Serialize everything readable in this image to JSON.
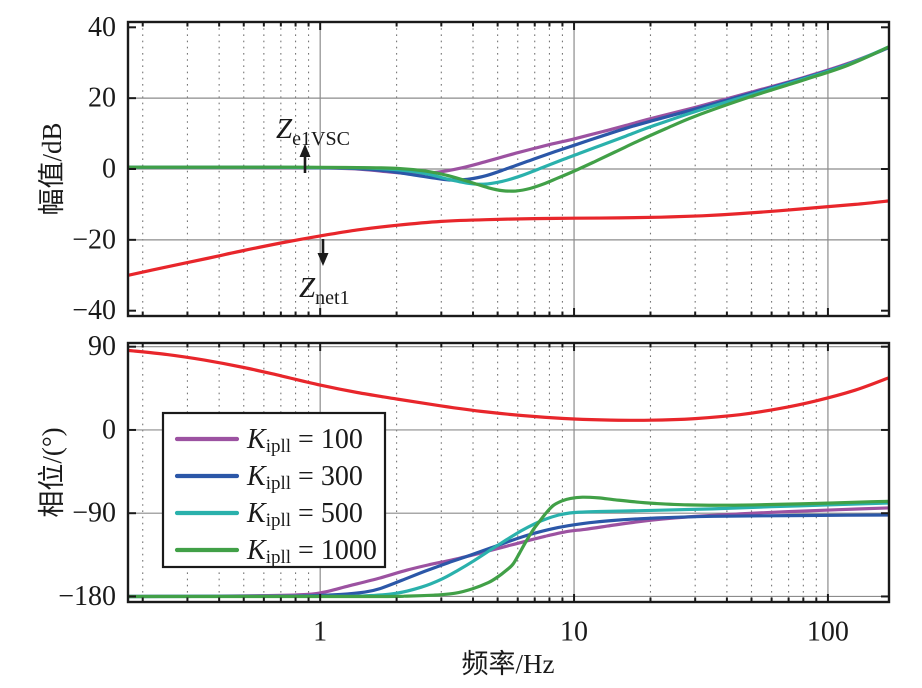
{
  "figure": {
    "xlabel": "频率/Hz",
    "x_tick_labels": [
      "1",
      "10",
      "100"
    ],
    "background": "#ffffff"
  },
  "colors": {
    "axis": "#1a1a1a",
    "grid_major": "#8c8c8c",
    "grid_minor": "#757575",
    "text": "#1a1a1a",
    "legend_bg": "#ffffff"
  },
  "legend": {
    "items": [
      {
        "k": "K",
        "sub": "ipll",
        "eq": " = 100",
        "color": "#9C52A1"
      },
      {
        "k": "K",
        "sub": "ipll",
        "eq": " = 300",
        "color": "#2B57A8"
      },
      {
        "k": "K",
        "sub": "ipll",
        "eq": " = 500",
        "color": "#2AB1AC"
      },
      {
        "k": "K",
        "sub": "ipll",
        "eq": " = 1000",
        "color": "#41A047"
      }
    ]
  },
  "annotations": [
    {
      "main": "Z",
      "sub": "e1VSC"
    },
    {
      "main": "Z",
      "sub": "net1"
    }
  ],
  "chart_data": [
    {
      "type": "line",
      "name": "magnitude",
      "ylabel": "幅值/dB",
      "xscale": "log",
      "xlim": [
        0.175,
        174
      ],
      "ylim": [
        -41.5,
        41.5
      ],
      "xticks": [
        1,
        10,
        100
      ],
      "yticks": [
        40,
        20,
        0,
        -20,
        -40
      ],
      "ytick_labels": [
        "40",
        "20",
        "0",
        "−20",
        "−40"
      ],
      "grid_y": [
        20,
        0,
        -20
      ],
      "grid": "on",
      "series": [
        {
          "name": "Kipll=100",
          "color": "#9C52A1",
          "x": [
            0.175,
            0.4,
            0.7,
            1.0,
            1.4,
            1.8,
            2.3,
            2.9,
            3.6,
            4.5,
            6,
            8,
            10,
            13,
            16,
            20,
            30,
            50,
            80,
            120,
            174
          ],
          "y": [
            0.5,
            0.5,
            0.4,
            0.3,
            0.0,
            -0.7,
            -1.3,
            -0.9,
            0.3,
            2.1,
            4.6,
            6.9,
            8.5,
            10.6,
            12.3,
            14.2,
            17.4,
            21.7,
            25.8,
            29.8,
            34.3
          ]
        },
        {
          "name": "Kipll=300",
          "color": "#2B57A8",
          "x": [
            0.175,
            0.5,
            0.9,
            1.3,
            1.8,
            2.3,
            2.9,
            3.3,
            3.8,
            4.5,
            5.5,
            7,
            8.5,
            10,
            13,
            16,
            20,
            30,
            50,
            80,
            120,
            174
          ],
          "y": [
            0.5,
            0.5,
            0.4,
            0.2,
            -0.5,
            -1.6,
            -2.7,
            -3.1,
            -2.9,
            -1.9,
            0.2,
            2.9,
            5.0,
            6.7,
            9.4,
            11.5,
            13.5,
            16.9,
            21.4,
            25.6,
            29.6,
            34.3
          ]
        },
        {
          "name": "Kipll=500",
          "color": "#2AB1AC",
          "x": [
            0.175,
            0.6,
            1.0,
            1.5,
            2.0,
            2.6,
            3.2,
            3.8,
            4.4,
            5.2,
            6.2,
            7.5,
            9,
            10.5,
            13,
            16,
            20,
            30,
            50,
            80,
            120,
            174
          ],
          "y": [
            0.5,
            0.5,
            0.4,
            0.3,
            -0.2,
            -1.3,
            -2.9,
            -4.0,
            -4.3,
            -3.5,
            -1.9,
            0.4,
            2.6,
            4.4,
            6.9,
            9.3,
            11.9,
            16.2,
            21.0,
            25.4,
            29.5,
            34.5
          ]
        },
        {
          "name": "Kipll=1000",
          "color": "#41A047",
          "x": [
            0.175,
            0.8,
            1.4,
            2.0,
            2.6,
            3.2,
            3.9,
            4.6,
            5.2,
            5.9,
            6.7,
            7.6,
            8.6,
            10,
            12,
            14.5,
            18,
            23,
            30,
            50,
            80,
            120,
            174
          ],
          "y": [
            0.5,
            0.5,
            0.4,
            0.2,
            -0.6,
            -1.9,
            -3.7,
            -5.3,
            -6.1,
            -6.2,
            -5.5,
            -4.2,
            -2.6,
            -0.6,
            2.0,
            4.8,
            8.0,
            11.4,
            14.9,
            20.5,
            25.1,
            29.3,
            34.5
          ]
        },
        {
          "name": "Znet1",
          "color": "#E8262B",
          "x": [
            0.175,
            0.25,
            0.35,
            0.5,
            0.7,
            1.0,
            1.4,
            2,
            3,
            4.5,
            7,
            10,
            15,
            22,
            32,
            45,
            64,
            90,
            128,
            174
          ],
          "y": [
            -30.0,
            -27.6,
            -25.4,
            -23.0,
            -20.9,
            -18.9,
            -17.2,
            -15.9,
            -14.8,
            -14.3,
            -14.0,
            -13.9,
            -13.8,
            -13.6,
            -13.2,
            -12.6,
            -11.8,
            -10.9,
            -10.0,
            -9.0
          ]
        }
      ]
    },
    {
      "type": "line",
      "name": "phase",
      "ylabel": "相位/(°)",
      "xscale": "log",
      "xlim": [
        0.175,
        174
      ],
      "ylim": [
        -186,
        94
      ],
      "xticks": [
        1,
        10,
        100
      ],
      "yticks": [
        90,
        0,
        -90,
        -180
      ],
      "ytick_labels": [
        "90",
        "0",
        "−90",
        "−180"
      ],
      "grid_y": [
        90,
        0,
        -90,
        -180
      ],
      "grid": "on",
      "series": [
        {
          "name": "Kipll=100",
          "color": "#9C52A1",
          "x": [
            0.175,
            0.3,
            0.45,
            0.6,
            0.8,
            1.0,
            1.3,
            1.72,
            2.2,
            2.66,
            3.5,
            4.3,
            5.2,
            6.3,
            7.7,
            9.3,
            11,
            13.5,
            17,
            22,
            30,
            45,
            70,
            110,
            174
          ],
          "y": [
            -180,
            -179.8,
            -179.5,
            -179.1,
            -178.4,
            -176.2,
            -168.5,
            -160,
            -151.5,
            -146,
            -139,
            -133,
            -127,
            -121,
            -115,
            -110,
            -107.5,
            -104,
            -100,
            -96.5,
            -93.5,
            -90.8,
            -88.3,
            -86.2,
            -84.3
          ]
        },
        {
          "name": "Kipll=300",
          "color": "#2B57A8",
          "x": [
            0.175,
            0.6,
            0.9,
            1.2,
            1.5,
            1.72,
            2.1,
            2.6,
            3.2,
            3.9,
            4.7,
            5.6,
            6.7,
            8,
            9.5,
            11.5,
            14,
            18,
            25,
            40,
            70,
            120,
            174
          ],
          "y": [
            -180,
            -179.8,
            -179.3,
            -177.9,
            -175.3,
            -171.5,
            -162.5,
            -152.5,
            -143.5,
            -135.5,
            -127.5,
            -120,
            -113,
            -107.5,
            -103.5,
            -100.3,
            -98,
            -96,
            -94.4,
            -93.2,
            -92.6,
            -92.2,
            -92
          ]
        },
        {
          "name": "Kipll=500",
          "color": "#2AB1AC",
          "x": [
            0.175,
            1.0,
            1.5,
            2.0,
            2.5,
            3.0,
            3.5,
            4.0,
            4.7,
            5.4,
            6.2,
            7.0,
            7.8,
            8.7,
            9.6,
            10.8,
            12.7,
            16,
            22,
            35,
            60,
            100,
            174
          ],
          "y": [
            -180,
            -179.9,
            -179.4,
            -176.5,
            -170,
            -161.5,
            -151.5,
            -142,
            -129.5,
            -119,
            -109,
            -101.5,
            -96,
            -92,
            -89.8,
            -88.8,
            -88.2,
            -87.6,
            -86.8,
            -85.3,
            -83,
            -81,
            -79
          ]
        },
        {
          "name": "Kipll=1000",
          "color": "#41A047",
          "x": [
            0.175,
            1.6,
            2.2,
            2.8,
            3.4,
            4.0,
            4.6,
            5.0,
            5.4,
            5.75,
            6.1,
            6.5,
            6.9,
            7.35,
            7.8,
            8.3,
            9.0,
            9.7,
            10.8,
            12.5,
            14.5,
            17,
            21,
            28,
            40,
            60,
            100,
            150,
            174
          ],
          "y": [
            -180,
            -180,
            -179.6,
            -178.6,
            -176.5,
            -171.5,
            -165,
            -159,
            -152,
            -145,
            -133,
            -119.5,
            -108,
            -98,
            -89,
            -81.5,
            -76.5,
            -74,
            -72.7,
            -73.5,
            -75.5,
            -77.5,
            -79.5,
            -81,
            -81.4,
            -80.6,
            -79.1,
            -77.6,
            -77.1
          ]
        },
        {
          "name": "Znet1",
          "color": "#E8262B",
          "x": [
            0.175,
            0.25,
            0.35,
            0.5,
            0.7,
            1.0,
            1.4,
            2,
            3,
            4.5,
            7,
            10,
            14,
            20,
            30,
            45,
            64,
            90,
            128,
            174
          ],
          "y": [
            86,
            81.5,
            75.5,
            67.5,
            58.5,
            48.5,
            40.5,
            33.5,
            26,
            19.5,
            14.5,
            11.8,
            10.6,
            10.5,
            12.3,
            16.5,
            23,
            31.5,
            43,
            56.5
          ]
        }
      ]
    }
  ]
}
